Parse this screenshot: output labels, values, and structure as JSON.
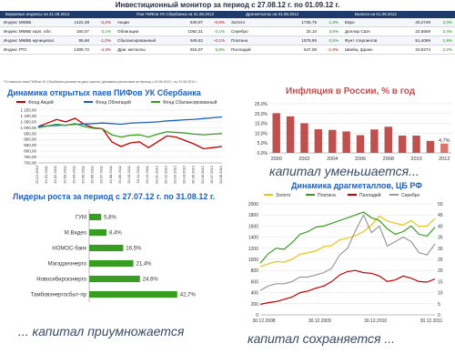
{
  "title": "Инвестиционный монитор за период с 27.08.12 г. по 01.09.12 г.",
  "table": {
    "headers": [
      "Биржевые индексы на 31.08.2012",
      "Паи ПИФов УК Сбербанка на 31.08.2012",
      "Драгметаллы на 01.09.2012",
      "Валюта на 01.09.2012"
    ],
    "rows": [
      [
        [
          "Индекс ММВБ",
          "1422,38",
          "-2,2%"
        ],
        [
          "Акции",
          "840,07",
          "-0,6%"
        ],
        [
          "Золото",
          "1735,75",
          "1,8%"
        ],
        [
          "Евро",
          "40,2749",
          "2,0%"
        ]
      ],
      [
        [
          "Индекс ММВБ корп. обл.",
          "160,07",
          "0,1%"
        ],
        [
          "Облигации",
          "1092,31",
          "0,1%"
        ],
        [
          "Серебро",
          "32,10",
          "3,5%"
        ],
        [
          "Доллар США",
          "32,5669",
          "2,4%"
        ]
      ],
      [
        [
          "Индекс ММВБ муниципал.",
          "99,68",
          "-1,0%"
        ],
        [
          "Сбалансированный",
          "949,62",
          "-0,1%"
        ],
        [
          "Платина",
          "1578,95",
          "0,5%"
        ],
        [
          "Фунт стерлингов",
          "51,4069",
          "1,9%"
        ]
      ],
      [
        [
          "Индекс РТС",
          "1309,72",
          "-4,3%"
        ],
        [
          "Драг. металлы",
          "915,07",
          "5,8%"
        ],
        [
          "Палладий",
          "647,08",
          "-1,9%"
        ],
        [
          "Швейц. франк",
          "33,9274",
          "2,2%"
        ]
      ]
    ],
    "footnote": "*Стоимость паев ПИФов УК Сбербанка указана на дату оценки, динамика рассчитана за период с 24.08.2012 г. по 31.08.2012 г."
  },
  "captions": {
    "inflation": "капитал уменьшается...",
    "leaders": "... капитал приумножается",
    "metals": "капитал сохраняется ..."
  },
  "colors": {
    "header_bg": "#1f3b6b",
    "negative": "#c00000",
    "positive": "#00a000",
    "accent_title": "#1f5fbf",
    "inflation_bar": "#c0504d",
    "leaders_bar": "#3a9d23"
  },
  "chart_data": [
    {
      "id": "pif",
      "type": "line",
      "title": "Динамика открытых паев ПИФов УК Сбербанка",
      "legend": [
        "Фонд Акций",
        "Фонд Облигаций",
        "Фонд Сбалансированный"
      ],
      "legend_position": "top",
      "ylim": [
        700,
        1150
      ],
      "y_ticks": [
        "1 150,00",
        "1 100,00",
        "1 050,00",
        "1 000,00",
        "950,00",
        "900,00",
        "850,00",
        "800,00",
        "750,00",
        "700,00"
      ],
      "x_ticks": [
        "20.12.2010",
        "20.01.2011",
        "20.02.2011",
        "20.03.2011",
        "20.04.2011",
        "20.05.2011",
        "20.06.2011",
        "20.07.2011",
        "20.08.2011",
        "20.09.2011",
        "20.10.2011",
        "20.11.2011",
        "20.12.2011",
        "20.01.2012",
        "20.02.2012",
        "20.03.2012",
        "20.04.2012",
        "20.05.2012",
        "20.06.2012",
        "20.07.2012",
        "20.08.2012"
      ],
      "grid": true,
      "series": [
        {
          "name": "Фонд Акций",
          "color": "#c00000",
          "values": [
            1010,
            1040,
            1070,
            1050,
            1080,
            1030,
            1000,
            990,
            880,
            840,
            870,
            880,
            830,
            880,
            930,
            920,
            890,
            860,
            820,
            830,
            840
          ]
        },
        {
          "name": "Фонд Облигаций",
          "color": "#1f5fbf",
          "values": [
            1010,
            1015,
            1020,
            1022,
            1028,
            1032,
            1035,
            1040,
            1035,
            1030,
            1038,
            1042,
            1045,
            1050,
            1058,
            1062,
            1068,
            1072,
            1078,
            1085,
            1092
          ]
        },
        {
          "name": "Фонд Сбалансированный",
          "color": "#3a9d23",
          "values": [
            1000,
            1015,
            1030,
            1020,
            1035,
            1010,
            995,
            990,
            940,
            920,
            935,
            940,
            920,
            945,
            965,
            960,
            955,
            945,
            940,
            945,
            950
          ]
        }
      ]
    },
    {
      "id": "inflation",
      "type": "bar",
      "title": "Инфляция в России, % в год",
      "categories": [
        "2000",
        "2001",
        "2002",
        "2003",
        "2004",
        "2005",
        "2006",
        "2007",
        "2008",
        "2009",
        "2010",
        "2011",
        "2012"
      ],
      "values": [
        20.2,
        18.6,
        15.1,
        12.0,
        11.7,
        10.9,
        9.0,
        11.9,
        13.3,
        8.8,
        8.8,
        6.1,
        4.7
      ],
      "x_tick_labels": [
        "2000",
        "2002",
        "2004",
        "2006",
        "2008",
        "2010",
        "2012"
      ],
      "data_labels": {
        "2012": "4,7%"
      },
      "ylim": [
        0,
        25
      ],
      "y_ticks": [
        "25,0%",
        "20,0%",
        "15,0%",
        "10,0%",
        "5,0%",
        "0,0%"
      ],
      "grid": true
    },
    {
      "id": "leaders",
      "type": "bar",
      "orientation": "horizontal",
      "title": "Лидеры роста за период с 27.07.12 г. по 31.08.12 г.",
      "categories": [
        "ГУМ",
        "М.Видео",
        "НОМОС-банк",
        "Магаданэнерго",
        "Новосибирскэнерго",
        "Тамбовэнергосбыт-пр"
      ],
      "values": [
        5.8,
        8.4,
        16.5,
        21.4,
        24.6,
        42.7
      ],
      "data_labels": [
        "5,8%",
        "8,4%",
        "16,5%",
        "21,4%",
        "24,6%",
        "42,7%"
      ],
      "grid": false
    },
    {
      "id": "metals",
      "type": "line",
      "title": "Динамика драгметаллов, ЦБ РФ",
      "legend": [
        "Золото",
        "Платина",
        "Палладий",
        "Серебро"
      ],
      "legend_position": "top",
      "ylim": [
        0,
        2000
      ],
      "y_ticks": [
        "2000",
        "1800",
        "1600",
        "1400",
        "1200",
        "1000",
        "800",
        "600",
        "400",
        "200",
        "0"
      ],
      "y2lim": [
        0,
        50
      ],
      "y2_ticks": [
        "50",
        "45",
        "40",
        "35",
        "30",
        "25",
        "20",
        "15",
        "10",
        "5",
        "0"
      ],
      "x_ticks": [
        "30.12.2008",
        "30.12.2009",
        "30.12.2010",
        "30.12.2011"
      ],
      "grid": true,
      "series": [
        {
          "name": "Золото",
          "color": "#e6c619",
          "axis": "left",
          "values": [
            870,
            920,
            960,
            950,
            1000,
            1090,
            1120,
            1150,
            1230,
            1250,
            1350,
            1380,
            1430,
            1500,
            1620,
            1780,
            1690,
            1650,
            1620,
            1700,
            1590,
            1600,
            1735
          ]
        },
        {
          "name": "Платина",
          "color": "#3a9d23",
          "axis": "left",
          "values": [
            930,
            1100,
            1200,
            1180,
            1300,
            1450,
            1500,
            1580,
            1600,
            1650,
            1700,
            1750,
            1800,
            1850,
            1750,
            1700,
            1550,
            1450,
            1500,
            1600,
            1450,
            1420,
            1579
          ]
        },
        {
          "name": "Палладий",
          "color": "#c00000",
          "axis": "left",
          "values": [
            190,
            220,
            240,
            280,
            320,
            400,
            430,
            480,
            520,
            600,
            720,
            780,
            800,
            760,
            750,
            700,
            600,
            630,
            700,
            660,
            600,
            590,
            647
          ]
        },
        {
          "name": "Серебро",
          "color": "#999999",
          "axis": "right",
          "values": [
            11,
            13,
            14,
            14,
            15,
            17,
            17,
            18,
            19,
            21,
            27,
            30,
            38,
            45,
            37,
            40,
            31,
            33,
            35,
            33,
            28,
            27,
            32
          ]
        }
      ]
    }
  ]
}
